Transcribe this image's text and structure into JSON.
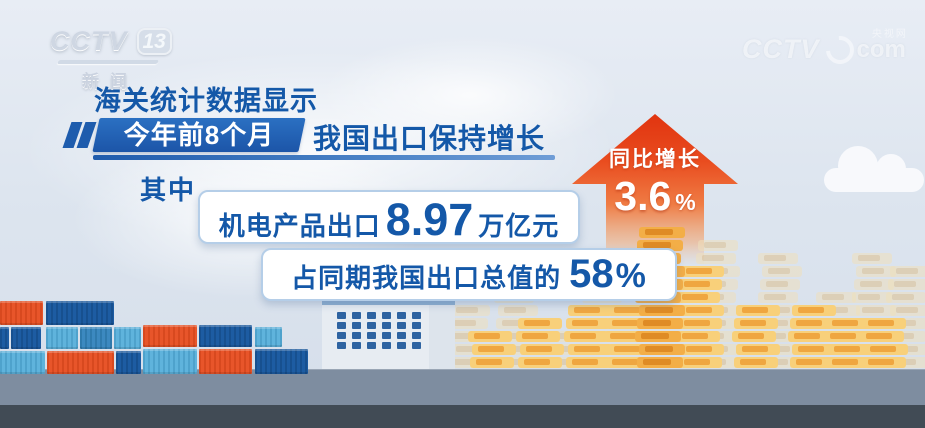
{
  "channel_bug": {
    "brand": "CCTV",
    "channel_number": "13",
    "subtitle": "新闻"
  },
  "site_watermark": {
    "brand": "CCTV",
    "cn_name": "央视网",
    "domain_suffix": "com"
  },
  "headline": "海关统计数据显示",
  "subheadline": {
    "period": "今年前8个月",
    "statement": "我国出口保持增长"
  },
  "among_label": "其中",
  "stat_boxes": [
    {
      "prefix": "机电产品出口",
      "value": "8.97",
      "suffix": "万亿元"
    },
    {
      "prefix": "占同期我国出口总值的",
      "value": "58",
      "suffix": "%"
    }
  ],
  "growth_arrow": {
    "label": "同比增长",
    "value": "3.6",
    "unit": "%"
  },
  "colors": {
    "primary_text_blue": "#1458A8",
    "banner_blue": "#2165B6",
    "arrow_red": "#E7431F",
    "coin_gold": "#F3B44A",
    "container_orange": "#E8552A",
    "container_navy": "#1D5CA2",
    "container_lightblue": "#5FB3DC",
    "road_gray": "#7E8DA0",
    "footer_dark": "#414B55"
  }
}
